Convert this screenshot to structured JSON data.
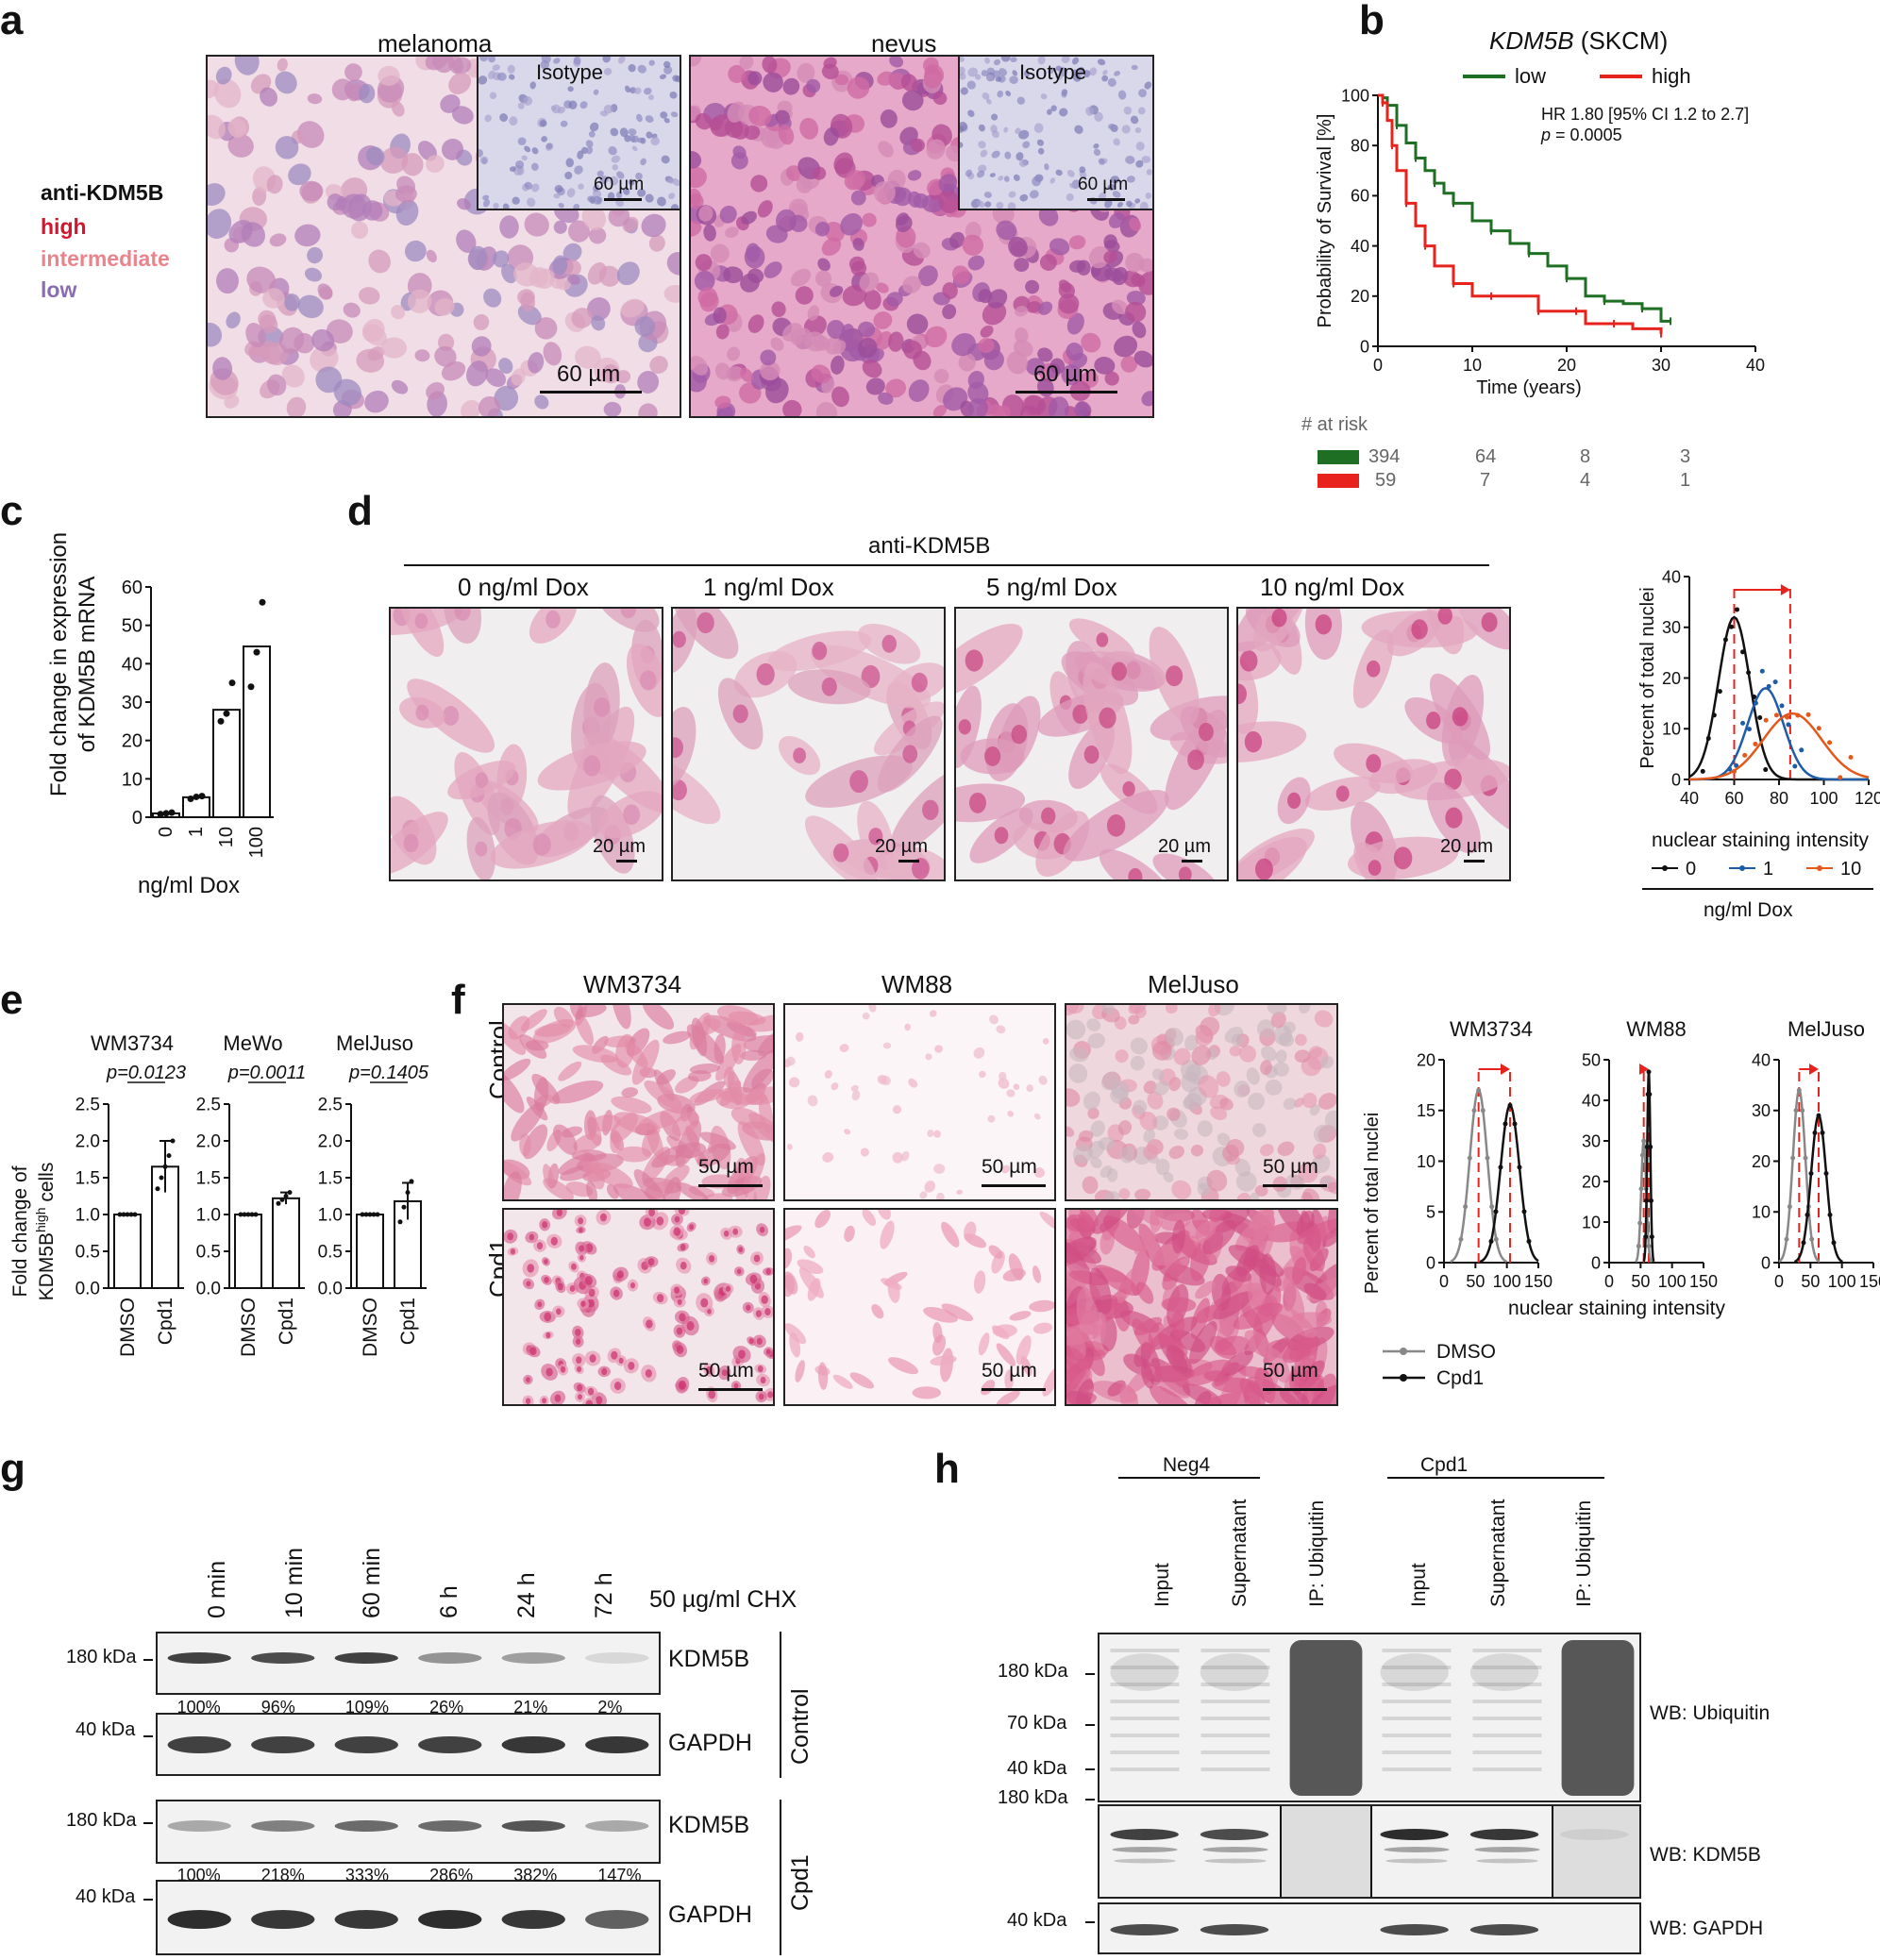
{
  "panel_a": {
    "label": "a",
    "titles": [
      "melanoma",
      "nevus"
    ],
    "inset_label": "Isotype",
    "inset_scale": "60 µm",
    "scale": "60 µm",
    "legend_title": "anti-KDM5B",
    "legend_items": [
      {
        "text": "high",
        "color": "#d4152e"
      },
      {
        "text": "intermediate",
        "color": "#e9848d"
      },
      {
        "text": "low",
        "color": "#8a6cb3"
      }
    ]
  },
  "panel_b": {
    "label": "b",
    "title_gene": "KDM5B",
    "title_rest": " (SKCM)",
    "hr_text": "HR 1.80 [95% CI 1.2 to 2.7]",
    "p_prefix": "p",
    "p_text": " = 0.0005",
    "at_risk_label": "# at risk",
    "at_risk_low": [
      "394",
      "64",
      "8",
      "3"
    ],
    "at_risk_high": [
      "59",
      "7",
      "4",
      "1"
    ]
  },
  "panel_c": {
    "label": "c"
  },
  "panel_d": {
    "label": "d",
    "header": "anti-KDM5B",
    "conditions": [
      "0 ng/ml Dox",
      "1 ng/ml Dox",
      "5 ng/ml Dox",
      "10 ng/ml Dox"
    ],
    "scale": "20 µm",
    "legend_title": "ng/ml Dox"
  },
  "panel_e": {
    "label": "e"
  },
  "panel_f": {
    "label": "f",
    "cell_lines": [
      "WM3734",
      "WM88",
      "MelJuso"
    ],
    "rows": [
      "Control",
      "Cpd1"
    ],
    "scale": "50 µm"
  },
  "panel_g": {
    "label": "g",
    "timepoints": [
      "0 min",
      "10 min",
      "60 min",
      "6 h",
      "24 h",
      "72 h"
    ],
    "treatment": "50 µg/ml CHX",
    "kda_180": "180 kDa",
    "kda_40": "40 kDa",
    "protein_1": "KDM5B",
    "protein_2": "GAPDH",
    "group_control": "Control",
    "group_cpd1": "Cpd1",
    "pct_control": [
      "100%",
      "96%",
      "109%",
      "26%",
      "21%",
      "2%"
    ],
    "pct_cpd1": [
      "100%",
      "218%",
      "333%",
      "286%",
      "382%",
      "147%"
    ]
  },
  "panel_h": {
    "label": "h",
    "groups": [
      "Neg4",
      "Cpd1"
    ],
    "lanes": [
      "Input",
      "Supernatant",
      "IP: Ubiquitin",
      "Input",
      "Supernatant",
      "IP: Ubiquitin"
    ],
    "kda_ub": [
      "180 kDa",
      "70 kDa",
      "40 kDa"
    ],
    "kda_kdm": "180 kDa",
    "kda_gapdh": "40 kDa",
    "wb_ub": "WB: Ubiquitin",
    "wb_kdm": "WB: KDM5B",
    "wb_gapdh": "WB: GAPDH"
  },
  "chart_data": [
    {
      "id": "b",
      "type": "line",
      "ylabel": "Probability of Survival [%]",
      "xlabel": "Time (years)",
      "xlim": [
        0,
        40
      ],
      "ylim": [
        0,
        100
      ],
      "xticks": [
        0,
        10,
        20,
        30,
        40
      ],
      "yticks": [
        0,
        20,
        40,
        60,
        80,
        100
      ],
      "series": [
        {
          "name": "low",
          "color": "#1e6e24",
          "x": [
            0,
            0.5,
            1,
            2,
            3,
            4,
            5,
            6,
            7,
            8,
            10,
            12,
            14,
            16,
            18,
            20,
            22,
            24,
            26,
            28,
            30,
            31
          ],
          "y": [
            100,
            99,
            96,
            88,
            81,
            75,
            70,
            65,
            61,
            57,
            50,
            46,
            41,
            37,
            32,
            27,
            20,
            18,
            17,
            15,
            10,
            10
          ]
        },
        {
          "name": "high",
          "color": "#e8231d",
          "x": [
            0,
            0.5,
            1,
            1.5,
            2,
            3,
            4,
            5,
            6,
            8,
            10,
            12,
            14,
            17,
            20,
            21,
            22,
            25,
            27,
            30
          ],
          "y": [
            100,
            97,
            90,
            80,
            70,
            57,
            48,
            40,
            32,
            25,
            20,
            20,
            20,
            14,
            14,
            14,
            9,
            9,
            7,
            5
          ]
        }
      ]
    },
    {
      "id": "c",
      "type": "bar",
      "ylabel": "Fold change in expression of KDM5B mRNA",
      "xlabel": "ng/ml Dox",
      "categories": [
        "0",
        "1",
        "10",
        "100"
      ],
      "values": [
        1,
        5.2,
        28,
        44.5
      ],
      "points": [
        [
          0.8,
          1.0,
          1.2
        ],
        [
          4.8,
          5.3,
          5.5
        ],
        [
          25,
          27,
          35
        ],
        [
          34,
          43,
          56
        ]
      ],
      "ylim": [
        0,
        60
      ],
      "yticks": [
        0,
        10,
        20,
        30,
        40,
        50,
        60
      ]
    },
    {
      "id": "d",
      "type": "line",
      "ylabel": "Percent of total nuclei",
      "xlabel": "nuclear staining intensity",
      "xlim": [
        40,
        120
      ],
      "ylim": [
        0,
        40
      ],
      "xticks": [
        40,
        60,
        80,
        100,
        120
      ],
      "yticks": [
        0,
        10,
        20,
        30,
        40
      ],
      "series": [
        {
          "name": "0",
          "color": "#111111",
          "mean": 60,
          "sd": 7,
          "peak": 32
        },
        {
          "name": "1",
          "color": "#1f5ca8",
          "mean": 74,
          "sd": 8,
          "peak": 18
        },
        {
          "name": "10",
          "color": "#e2591b",
          "mean": 86,
          "sd": 13,
          "peak": 13
        }
      ],
      "markers": [
        60,
        85
      ]
    },
    {
      "id": "e",
      "type": "bar",
      "ylabel": "Fold change of KDM5Bhigh cells",
      "groups": [
        {
          "title": "WM3734",
          "categories": [
            "DMSO",
            "Cpd1"
          ],
          "values": [
            1.0,
            1.65
          ],
          "err": [
            0,
            0.35
          ],
          "p": "p=0.0123",
          "points": [
            [
              1,
              1,
              1,
              1,
              1
            ],
            [
              1.35,
              1.5,
              1.65,
              1.8,
              2.0
            ]
          ]
        },
        {
          "title": "MeWo",
          "categories": [
            "DMSO",
            "Cpd1"
          ],
          "values": [
            1.0,
            1.22
          ],
          "err": [
            0,
            0.08
          ],
          "p": "p=0.0011",
          "points": [
            [
              1,
              1,
              1,
              1,
              1
            ],
            [
              1.15,
              1.2,
              1.25,
              1.3
            ]
          ]
        },
        {
          "title": "MelJuso",
          "categories": [
            "DMSO",
            "Cpd1"
          ],
          "values": [
            1.0,
            1.18
          ],
          "err": [
            0,
            0.25
          ],
          "p": "p=0.1405",
          "points": [
            [
              1,
              1,
              1,
              1,
              1
            ],
            [
              0.9,
              1.1,
              1.3,
              1.45
            ]
          ]
        }
      ],
      "ylim": [
        0,
        2.5
      ],
      "yticks": [
        "0.0",
        "0.5",
        "1.0",
        "1.5",
        "2.0",
        "2.5"
      ]
    },
    {
      "id": "f",
      "type": "line",
      "ylabel": "Percent of total nuclei",
      "xlabel": "nuclear staining intensity",
      "legend": [
        "DMSO",
        "Cpd1"
      ],
      "subplots": [
        {
          "title": "WM3734",
          "ylim": [
            0,
            20
          ],
          "yticks": [
            0,
            5,
            10,
            15,
            20
          ],
          "xlim": [
            0,
            150
          ],
          "xticks": [
            0,
            50,
            100,
            150
          ],
          "dmso": {
            "mean": 55,
            "sd": 14,
            "peak": 17
          },
          "cpd1": {
            "mean": 105,
            "sd": 15,
            "peak": 15.5
          },
          "markers": [
            55,
            105
          ]
        },
        {
          "title": "WM88",
          "ylim": [
            0,
            50
          ],
          "yticks": [
            0,
            10,
            20,
            30,
            40,
            50
          ],
          "xlim": [
            0,
            150
          ],
          "xticks": [
            0,
            50,
            100,
            150
          ],
          "dmso": {
            "mean": 55,
            "sd": 4,
            "peak": 30
          },
          "cpd1": {
            "mean": 63,
            "sd": 2.5,
            "peak": 47
          },
          "markers": [
            55,
            63
          ]
        },
        {
          "title": "MelJuso",
          "ylim": [
            0,
            40
          ],
          "yticks": [
            0,
            10,
            20,
            30,
            40
          ],
          "xlim": [
            0,
            150
          ],
          "xticks": [
            0,
            50,
            100,
            150
          ],
          "dmso": {
            "mean": 32,
            "sd": 10,
            "peak": 34
          },
          "cpd1": {
            "mean": 63,
            "sd": 12,
            "peak": 29
          },
          "markers": [
            32,
            63
          ]
        }
      ]
    }
  ]
}
